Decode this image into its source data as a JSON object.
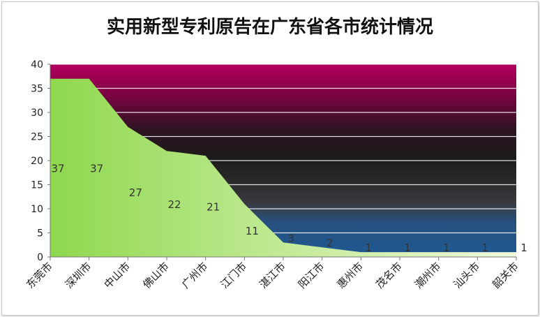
{
  "chart_data": {
    "type": "area",
    "title": "实用新型专利原告在广东省各市统计情况",
    "categories": [
      "东莞市",
      "深圳市",
      "中山市",
      "佛山市",
      "广州市",
      "江门市",
      "湛江市",
      "阳江市",
      "惠州市",
      "茂名市",
      "潮州市",
      "汕头市",
      "韶关市"
    ],
    "series": [
      {
        "values": [
          37,
          37,
          27,
          22,
          21,
          11,
          3,
          2,
          1,
          1,
          1,
          1,
          1
        ]
      }
    ],
    "ylim": [
      0,
      40
    ],
    "yticks": [
      0,
      5,
      10,
      15,
      20,
      25,
      30,
      35,
      40
    ],
    "grid": true,
    "legend": "none",
    "colors": {
      "area_light": "#f0f8d8",
      "area_dark": "#8fd84e",
      "background_top": "#a8005a",
      "background_mid": "#222222",
      "background_bottom": "#1f5a92",
      "gridline": "#ffffff"
    }
  }
}
